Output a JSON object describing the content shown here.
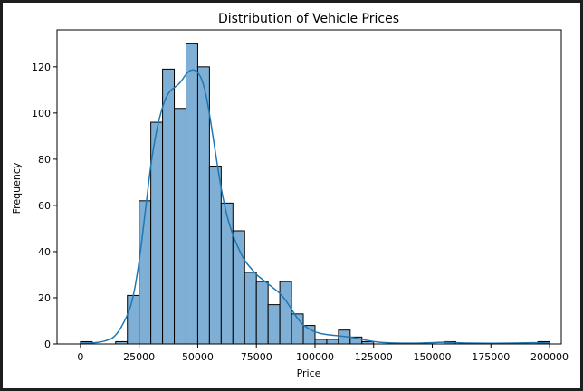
{
  "chart_data": {
    "type": "bar",
    "title": "Distribution of Vehicle Prices",
    "xlabel": "Price",
    "ylabel": "Frequency",
    "xlim": [
      -10000,
      205000
    ],
    "ylim": [
      0,
      136
    ],
    "xticks": [
      0,
      25000,
      50000,
      75000,
      100000,
      125000,
      150000,
      175000,
      200000
    ],
    "yticks": [
      0,
      20,
      40,
      60,
      80,
      100,
      120
    ],
    "bin_width": 5000,
    "bins": [
      {
        "start": 0,
        "end": 5000,
        "count": 1
      },
      {
        "start": 15000,
        "end": 20000,
        "count": 1
      },
      {
        "start": 20000,
        "end": 25000,
        "count": 21
      },
      {
        "start": 25000,
        "end": 30000,
        "count": 62
      },
      {
        "start": 30000,
        "end": 35000,
        "count": 96
      },
      {
        "start": 35000,
        "end": 40000,
        "count": 119
      },
      {
        "start": 40000,
        "end": 45000,
        "count": 102
      },
      {
        "start": 45000,
        "end": 50000,
        "count": 130
      },
      {
        "start": 50000,
        "end": 55000,
        "count": 120
      },
      {
        "start": 55000,
        "end": 60000,
        "count": 77
      },
      {
        "start": 60000,
        "end": 65000,
        "count": 61
      },
      {
        "start": 65000,
        "end": 70000,
        "count": 49
      },
      {
        "start": 70000,
        "end": 75000,
        "count": 31
      },
      {
        "start": 75000,
        "end": 80000,
        "count": 27
      },
      {
        "start": 80000,
        "end": 85000,
        "count": 17
      },
      {
        "start": 85000,
        "end": 90000,
        "count": 27
      },
      {
        "start": 90000,
        "end": 95000,
        "count": 13
      },
      {
        "start": 95000,
        "end": 100000,
        "count": 8
      },
      {
        "start": 100000,
        "end": 105000,
        "count": 2
      },
      {
        "start": 105000,
        "end": 110000,
        "count": 2
      },
      {
        "start": 110000,
        "end": 115000,
        "count": 6
      },
      {
        "start": 115000,
        "end": 120000,
        "count": 3
      },
      {
        "start": 120000,
        "end": 125000,
        "count": 1
      },
      {
        "start": 155000,
        "end": 160000,
        "count": 1
      },
      {
        "start": 195000,
        "end": 200000,
        "count": 1
      }
    ],
    "kde": {
      "x": [
        0,
        5000,
        10000,
        15000,
        20000,
        22500,
        25000,
        27500,
        30000,
        32500,
        35000,
        37500,
        40000,
        42500,
        45000,
        47500,
        50000,
        52500,
        55000,
        57500,
        60000,
        62500,
        65000,
        67500,
        70000,
        72500,
        75000,
        77500,
        80000,
        82500,
        85000,
        87500,
        90000,
        92500,
        95000,
        100000,
        105000,
        110000,
        115000,
        120000,
        125000,
        130000,
        140000,
        150000,
        155000,
        160000,
        170000,
        180000,
        190000,
        195000,
        200000
      ],
      "y": [
        0.3,
        0.4,
        1,
        3,
        12,
        20,
        35,
        56,
        78,
        93,
        103,
        109,
        111,
        113,
        117,
        119,
        118,
        113,
        100,
        83,
        67,
        55,
        47,
        41,
        36,
        33,
        30,
        28,
        26,
        24,
        22,
        19,
        15,
        11,
        8,
        5,
        4,
        3.5,
        3,
        2,
        1,
        0.5,
        0.3,
        0.5,
        0.8,
        0.5,
        0.3,
        0.3,
        0.5,
        0.6,
        0.4
      ]
    },
    "grid": false,
    "legend": "none",
    "bar_fill": "#7fafd5",
    "bar_edge": "#000000",
    "kde_color": "#1f77b4"
  }
}
